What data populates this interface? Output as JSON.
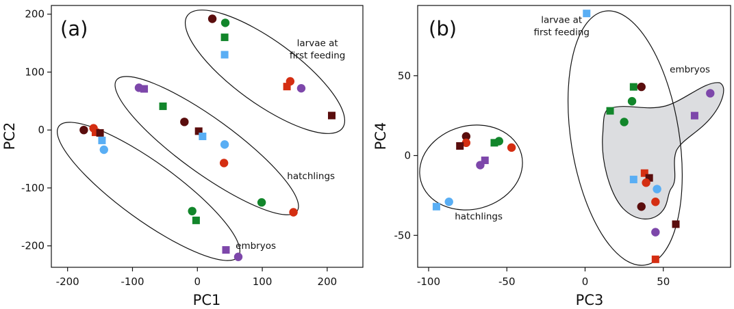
{
  "colors": {
    "dark_red": "#5a0d0d",
    "red": "#d42e12",
    "green": "#12862b",
    "blue": "#59aef4",
    "purple": "#7d47aa",
    "shade": "#dcdde0"
  },
  "chart_data": [
    {
      "type": "scatter",
      "panel_label": "(a)",
      "xlabel": "PC1",
      "ylabel": "PC2",
      "xlim": [
        -225,
        255
      ],
      "ylim": [
        -237,
        215
      ],
      "xticks": [
        -200,
        -100,
        0,
        100,
        200
      ],
      "yticks": [
        -200,
        -100,
        0,
        100,
        200
      ],
      "xtick_labels": [
        "-200",
        "-100",
        "0",
        "100",
        "200"
      ],
      "ytick_labels": [
        "-200",
        "-100",
        "0",
        "100",
        "200"
      ],
      "groups": [
        {
          "label": "larvae at\nfirst feeding",
          "label_lines": [
            "larvae at",
            "first feeding"
          ],
          "label_pos": [
            185,
            145
          ]
        },
        {
          "label": "hatchlings",
          "label_pos": [
            175,
            -85
          ]
        },
        {
          "label": "embryos",
          "label_pos": [
            90,
            -205
          ]
        }
      ],
      "points": [
        {
          "x": 23,
          "y": 192,
          "marker": "circle",
          "color": "dark_red"
        },
        {
          "x": 43,
          "y": 185,
          "marker": "circle",
          "color": "green"
        },
        {
          "x": 42,
          "y": 160,
          "marker": "square",
          "color": "green"
        },
        {
          "x": 42,
          "y": 130,
          "marker": "square",
          "color": "blue"
        },
        {
          "x": 143,
          "y": 84,
          "marker": "circle",
          "color": "red"
        },
        {
          "x": 138,
          "y": 75,
          "marker": "square",
          "color": "red"
        },
        {
          "x": 160,
          "y": 72,
          "marker": "circle",
          "color": "purple"
        },
        {
          "x": 207,
          "y": 25,
          "marker": "square",
          "color": "dark_red"
        },
        {
          "x": -90,
          "y": 73,
          "marker": "circle",
          "color": "purple"
        },
        {
          "x": -82,
          "y": 71,
          "marker": "square",
          "color": "purple"
        },
        {
          "x": -53,
          "y": 41,
          "marker": "square",
          "color": "green"
        },
        {
          "x": -20,
          "y": 14,
          "marker": "circle",
          "color": "dark_red"
        },
        {
          "x": 2,
          "y": -2,
          "marker": "square",
          "color": "dark_red"
        },
        {
          "x": 8,
          "y": -11,
          "marker": "square",
          "color": "blue"
        },
        {
          "x": 42,
          "y": -25,
          "marker": "circle",
          "color": "blue"
        },
        {
          "x": 41,
          "y": -57,
          "marker": "circle",
          "color": "red"
        },
        {
          "x": 99,
          "y": -125,
          "marker": "circle",
          "color": "green"
        },
        {
          "x": 148,
          "y": -142,
          "marker": "circle",
          "color": "red"
        },
        {
          "x": -175,
          "y": 0,
          "marker": "circle",
          "color": "dark_red"
        },
        {
          "x": -160,
          "y": 3,
          "marker": "circle",
          "color": "red"
        },
        {
          "x": -157,
          "y": -4,
          "marker": "square",
          "color": "red"
        },
        {
          "x": -150,
          "y": -5,
          "marker": "square",
          "color": "dark_red"
        },
        {
          "x": -147,
          "y": -18,
          "marker": "square",
          "color": "blue"
        },
        {
          "x": -144,
          "y": -34,
          "marker": "circle",
          "color": "blue"
        },
        {
          "x": -8,
          "y": -140,
          "marker": "circle",
          "color": "green"
        },
        {
          "x": -2,
          "y": -156,
          "marker": "square",
          "color": "green"
        },
        {
          "x": 44,
          "y": -207,
          "marker": "square",
          "color": "purple"
        },
        {
          "x": 63,
          "y": -219,
          "marker": "circle",
          "color": "purple"
        }
      ]
    },
    {
      "type": "scatter",
      "panel_label": "(b)",
      "xlabel": "PC3",
      "ylabel": "PC4",
      "xlim": [
        -107,
        93
      ],
      "ylim": [
        -70,
        94
      ],
      "xticks": [
        -100,
        -50,
        0,
        50
      ],
      "yticks": [
        -50,
        0,
        50
      ],
      "xtick_labels": [
        "-100",
        "-50",
        "0",
        "50"
      ],
      "ytick_labels": [
        "-50",
        "0",
        "50"
      ],
      "groups": [
        {
          "label": "larvae at\nfirst feeding",
          "label_lines": [
            "larvae at",
            "first feeding"
          ],
          "label_pos": [
            -15,
            83
          ]
        },
        {
          "label": "embryos",
          "label_pos": [
            67,
            52
          ]
        },
        {
          "label": "hatchlings",
          "label_pos": [
            -68,
            -40
          ]
        }
      ],
      "points": [
        {
          "x": 1,
          "y": 89,
          "marker": "square",
          "color": "blue"
        },
        {
          "x": 31,
          "y": 43,
          "marker": "square",
          "color": "green"
        },
        {
          "x": 36,
          "y": 43,
          "marker": "circle",
          "color": "dark_red"
        },
        {
          "x": 30,
          "y": 34,
          "marker": "circle",
          "color": "green"
        },
        {
          "x": 16,
          "y": 28,
          "marker": "square",
          "color": "green"
        },
        {
          "x": 25,
          "y": 21,
          "marker": "circle",
          "color": "green"
        },
        {
          "x": 80,
          "y": 39,
          "marker": "circle",
          "color": "purple"
        },
        {
          "x": 70,
          "y": 25,
          "marker": "square",
          "color": "purple"
        },
        {
          "x": 38,
          "y": -11,
          "marker": "square",
          "color": "red"
        },
        {
          "x": 41,
          "y": -14,
          "marker": "square",
          "color": "dark_red"
        },
        {
          "x": 31,
          "y": -15,
          "marker": "square",
          "color": "blue"
        },
        {
          "x": 39,
          "y": -17,
          "marker": "circle",
          "color": "red"
        },
        {
          "x": 46,
          "y": -21,
          "marker": "circle",
          "color": "blue"
        },
        {
          "x": 45,
          "y": -29,
          "marker": "circle",
          "color": "red"
        },
        {
          "x": 36,
          "y": -32,
          "marker": "circle",
          "color": "dark_red"
        },
        {
          "x": 58,
          "y": -43,
          "marker": "square",
          "color": "dark_red"
        },
        {
          "x": 45,
          "y": -48,
          "marker": "circle",
          "color": "purple"
        },
        {
          "x": 45,
          "y": -65,
          "marker": "square",
          "color": "red"
        },
        {
          "x": -76,
          "y": 12,
          "marker": "circle",
          "color": "dark_red"
        },
        {
          "x": -76,
          "y": 8,
          "marker": "circle",
          "color": "red"
        },
        {
          "x": -80,
          "y": 6,
          "marker": "square",
          "color": "dark_red"
        },
        {
          "x": -58,
          "y": 8,
          "marker": "square",
          "color": "green"
        },
        {
          "x": -55,
          "y": 9,
          "marker": "circle",
          "color": "green"
        },
        {
          "x": -47,
          "y": 5,
          "marker": "circle",
          "color": "red"
        },
        {
          "x": -64,
          "y": -3,
          "marker": "square",
          "color": "purple"
        },
        {
          "x": -67,
          "y": -6,
          "marker": "circle",
          "color": "purple"
        },
        {
          "x": -87,
          "y": -29,
          "marker": "circle",
          "color": "blue"
        },
        {
          "x": -95,
          "y": -32,
          "marker": "square",
          "color": "blue"
        }
      ]
    }
  ]
}
